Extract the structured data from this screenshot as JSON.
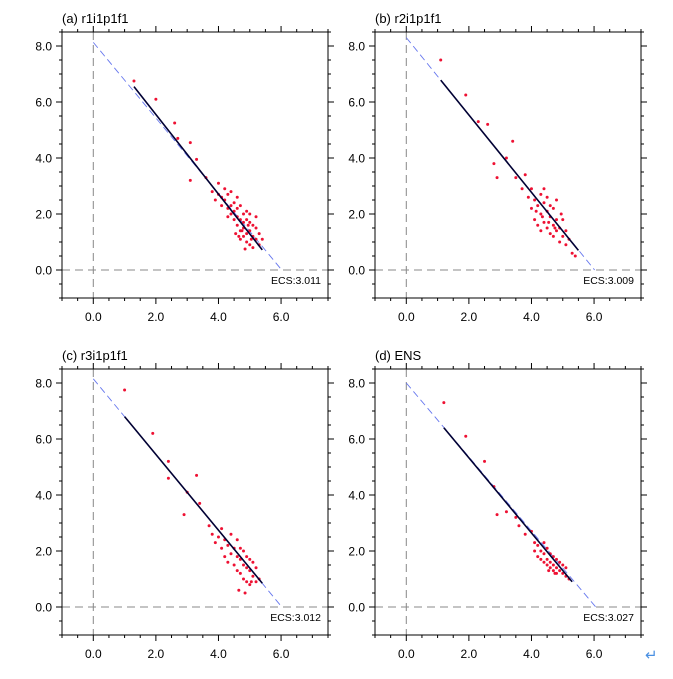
{
  "colors": {
    "points": "#ee1133",
    "fit_line": "#000033",
    "extension_line": "#6677ee",
    "zero_lines": "#888888",
    "axes": "#000000",
    "return_symbol": "#4a90e2"
  },
  "return_symbol": "↵",
  "chart_data": [
    {
      "type": "scatter",
      "title": "(a) r1i1p1f1",
      "ecs_label": "ECS:3.011",
      "xlim": [
        -1,
        7.5
      ],
      "ylim": [
        -1,
        8.5
      ],
      "xticks": [
        0,
        2,
        4,
        6
      ],
      "xtick_labels": [
        "0.0",
        "2.0",
        "4.0",
        "6.0"
      ],
      "yticks": [
        0,
        2,
        4,
        6,
        8
      ],
      "ytick_labels": [
        "0.0",
        "2.0",
        "4.0",
        "6.0",
        "8.0"
      ],
      "grid": false,
      "fit_line": {
        "x": [
          1.3,
          5.4
        ],
        "y": [
          6.55,
          0.72
        ]
      },
      "extension_line": {
        "x": [
          0,
          6.022
        ],
        "y": [
          8.13,
          0
        ]
      },
      "points": {
        "x": [
          1.3,
          2.0,
          2.6,
          2.7,
          3.1,
          3.1,
          3.3,
          3.6,
          3.8,
          3.9,
          4.0,
          4.0,
          4.1,
          4.1,
          4.2,
          4.2,
          4.3,
          4.3,
          4.3,
          4.4,
          4.4,
          4.4,
          4.5,
          4.5,
          4.5,
          4.6,
          4.6,
          4.6,
          4.6,
          4.7,
          4.7,
          4.7,
          4.7,
          4.8,
          4.8,
          4.8,
          4.8,
          4.9,
          4.9,
          4.9,
          4.9,
          5.0,
          5.0,
          5.0,
          5.0,
          5.1,
          5.1,
          5.1,
          5.2,
          5.2,
          5.2,
          5.3,
          5.3,
          5.4,
          4.65,
          4.85,
          5.05,
          4.95,
          4.75,
          4.55
        ],
        "y": [
          6.75,
          6.1,
          5.25,
          4.7,
          4.55,
          3.2,
          3.95,
          3.3,
          2.8,
          2.5,
          2.7,
          3.1,
          2.3,
          2.6,
          2.9,
          2.5,
          2.2,
          2.7,
          1.9,
          2.3,
          2.8,
          2.0,
          1.8,
          2.4,
          2.1,
          1.6,
          2.2,
          1.9,
          2.6,
          1.4,
          1.8,
          2.3,
          1.1,
          1.5,
          2.0,
          1.2,
          1.7,
          1.3,
          1.8,
          1.0,
          2.1,
          1.4,
          1.7,
          0.9,
          2.0,
          1.2,
          1.6,
          0.8,
          1.1,
          1.5,
          1.9,
          0.9,
          1.3,
          1.1,
          1.2,
          0.75,
          1.1,
          1.6,
          1.4,
          1.3
        ]
      }
    },
    {
      "type": "scatter",
      "title": "(b) r2i1p1f1",
      "ecs_label": "ECS:3.009",
      "xlim": [
        -1,
        7.5
      ],
      "ylim": [
        -1,
        8.5
      ],
      "xticks": [
        0,
        2,
        4,
        6
      ],
      "xtick_labels": [
        "0.0",
        "2.0",
        "4.0",
        "6.0"
      ],
      "yticks": [
        0,
        2,
        4,
        6,
        8
      ],
      "ytick_labels": [
        "0.0",
        "2.0",
        "4.0",
        "6.0",
        "8.0"
      ],
      "grid": false,
      "fit_line": {
        "x": [
          1.1,
          5.5
        ],
        "y": [
          6.78,
          0.7
        ]
      },
      "extension_line": {
        "x": [
          0,
          6.018
        ],
        "y": [
          8.3,
          0
        ]
      },
      "points": {
        "x": [
          1.1,
          1.9,
          2.3,
          2.6,
          2.8,
          2.9,
          3.2,
          3.4,
          3.5,
          3.7,
          3.8,
          3.9,
          4.0,
          4.0,
          4.1,
          4.1,
          4.2,
          4.2,
          4.3,
          4.3,
          4.3,
          4.4,
          4.4,
          4.4,
          4.5,
          4.5,
          4.5,
          4.6,
          4.6,
          4.6,
          4.7,
          4.7,
          4.7,
          4.8,
          4.8,
          4.8,
          4.9,
          4.9,
          5.0,
          5.0,
          5.1,
          5.1,
          5.2,
          5.3,
          5.4,
          4.15,
          4.35,
          4.55,
          4.75,
          4.95
        ],
        "y": [
          7.5,
          6.25,
          5.3,
          5.2,
          3.8,
          3.3,
          4.0,
          4.6,
          3.3,
          2.9,
          3.4,
          2.6,
          2.2,
          2.9,
          1.8,
          2.5,
          2.3,
          1.6,
          2.7,
          2.0,
          1.4,
          2.4,
          1.7,
          2.9,
          2.1,
          1.5,
          2.6,
          1.9,
          1.3,
          2.3,
          1.6,
          2.2,
          1.2,
          1.8,
          1.4,
          2.5,
          1.5,
          1.0,
          1.8,
          1.2,
          1.4,
          0.9,
          1.1,
          0.6,
          0.5,
          2.1,
          1.9,
          1.7,
          1.5,
          2.0
        ]
      }
    },
    {
      "type": "scatter",
      "title": "(c) r3i1p1f1",
      "ecs_label": "ECS:3.012",
      "xlim": [
        -1,
        7.5
      ],
      "ylim": [
        -1,
        8.5
      ],
      "xticks": [
        0,
        2,
        4,
        6
      ],
      "xtick_labels": [
        "0.0",
        "2.0",
        "4.0",
        "6.0"
      ],
      "yticks": [
        0,
        2,
        4,
        6,
        8
      ],
      "ytick_labels": [
        "0.0",
        "2.0",
        "4.0",
        "6.0",
        "8.0"
      ],
      "grid": false,
      "fit_line": {
        "x": [
          1.0,
          5.4
        ],
        "y": [
          6.8,
          0.85
        ]
      },
      "extension_line": {
        "x": [
          0,
          6.024
        ],
        "y": [
          8.15,
          0
        ]
      },
      "points": {
        "x": [
          1.0,
          1.9,
          2.4,
          2.4,
          2.9,
          3.0,
          3.3,
          3.4,
          3.7,
          3.8,
          3.9,
          4.0,
          4.1,
          4.1,
          4.2,
          4.2,
          4.3,
          4.3,
          4.4,
          4.4,
          4.5,
          4.5,
          4.6,
          4.6,
          4.6,
          4.7,
          4.7,
          4.7,
          4.8,
          4.8,
          4.8,
          4.9,
          4.9,
          4.9,
          5.0,
          5.0,
          5.0,
          5.1,
          5.1,
          5.2,
          5.2,
          5.3,
          4.65,
          4.85,
          5.05
        ],
        "y": [
          7.75,
          6.2,
          5.2,
          4.6,
          3.3,
          4.1,
          4.7,
          3.7,
          2.9,
          2.6,
          2.3,
          2.5,
          2.1,
          2.8,
          1.8,
          2.4,
          1.6,
          2.2,
          1.9,
          2.6,
          1.5,
          2.1,
          1.3,
          1.8,
          2.4,
          1.2,
          1.7,
          2.1,
          1.0,
          1.5,
          2.0,
          0.9,
          1.4,
          1.8,
          0.8,
          1.3,
          1.7,
          1.1,
          1.6,
          0.9,
          1.4,
          1.0,
          0.6,
          0.5,
          0.9
        ]
      }
    },
    {
      "type": "scatter",
      "title": "(d) ENS",
      "ecs_label": "ECS:3.027",
      "xlim": [
        -1,
        7.5
      ],
      "ylim": [
        -1,
        8.5
      ],
      "xticks": [
        0,
        2,
        4,
        6
      ],
      "xtick_labels": [
        "0.0",
        "2.0",
        "4.0",
        "6.0"
      ],
      "yticks": [
        0,
        2,
        4,
        6,
        8
      ],
      "ytick_labels": [
        "0.0",
        "2.0",
        "4.0",
        "6.0",
        "8.0"
      ],
      "grid": false,
      "fit_line": {
        "x": [
          1.2,
          5.3
        ],
        "y": [
          6.4,
          0.9
        ]
      },
      "extension_line": {
        "x": [
          0,
          6.054
        ],
        "y": [
          8.0,
          0
        ]
      },
      "points": {
        "x": [
          1.2,
          1.9,
          2.5,
          2.8,
          2.9,
          3.2,
          3.5,
          3.6,
          3.8,
          4.0,
          4.1,
          4.1,
          4.2,
          4.2,
          4.3,
          4.3,
          4.4,
          4.4,
          4.4,
          4.5,
          4.5,
          4.5,
          4.6,
          4.6,
          4.6,
          4.7,
          4.7,
          4.7,
          4.8,
          4.8,
          4.8,
          4.9,
          4.9,
          5.0,
          5.0,
          5.1,
          5.1,
          5.2,
          4.55,
          4.75
        ],
        "y": [
          7.3,
          6.1,
          5.2,
          4.3,
          3.3,
          3.4,
          3.2,
          2.9,
          2.6,
          2.7,
          2.3,
          2.0,
          2.2,
          1.8,
          2.0,
          1.7,
          1.9,
          1.6,
          2.3,
          1.7,
          1.5,
          2.1,
          1.6,
          1.4,
          1.9,
          1.5,
          1.3,
          1.8,
          1.4,
          1.2,
          1.7,
          1.3,
          1.6,
          1.2,
          1.5,
          1.1,
          1.4,
          1.0,
          1.3,
          1.2
        ]
      }
    }
  ]
}
